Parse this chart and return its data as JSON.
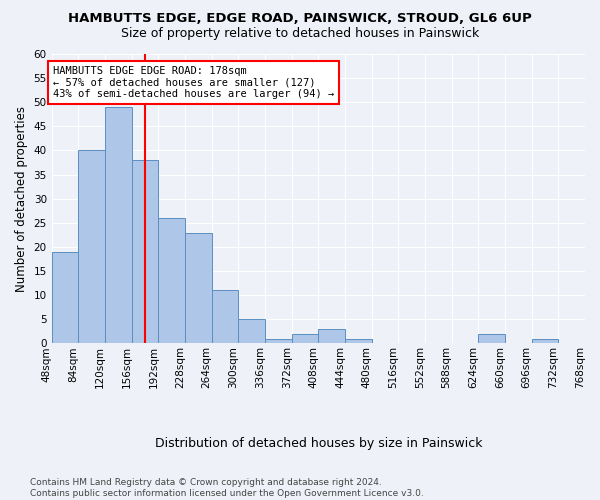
{
  "title": "HAMBUTTS EDGE, EDGE ROAD, PAINSWICK, STROUD, GL6 6UP",
  "subtitle": "Size of property relative to detached houses in Painswick",
  "xlabel": "Distribution of detached houses by size in Painswick",
  "ylabel": "Number of detached properties",
  "bar_values": [
    19,
    40,
    49,
    38,
    26,
    23,
    11,
    5,
    1,
    2,
    3,
    1,
    0,
    0,
    0,
    0,
    2,
    0,
    1,
    0
  ],
  "bin_labels": [
    "48sqm",
    "84sqm",
    "120sqm",
    "156sqm",
    "192sqm",
    "228sqm",
    "264sqm",
    "300sqm",
    "336sqm",
    "372sqm",
    "408sqm",
    "444sqm",
    "480sqm",
    "516sqm",
    "552sqm",
    "588sqm",
    "624sqm",
    "660sqm",
    "696sqm",
    "732sqm",
    "768sqm"
  ],
  "bar_color": "#aec6e8",
  "bar_edge_color": "#5a8fc2",
  "ref_line_color": "red",
  "annotation_text": "HAMBUTTS EDGE EDGE ROAD: 178sqm\n← 57% of detached houses are smaller (127)\n43% of semi-detached houses are larger (94) →",
  "annotation_box_color": "white",
  "annotation_box_edge": "red",
  "ylim": [
    0,
    60
  ],
  "yticks": [
    0,
    5,
    10,
    15,
    20,
    25,
    30,
    35,
    40,
    45,
    50,
    55,
    60
  ],
  "footer_line1": "Contains HM Land Registry data © Crown copyright and database right 2024.",
  "footer_line2": "Contains public sector information licensed under the Open Government Licence v3.0.",
  "bg_color": "#eef2f8",
  "plot_bg_color": "#eef2f8",
  "title_fontsize": 9.5,
  "subtitle_fontsize": 9,
  "xlabel_fontsize": 9,
  "ylabel_fontsize": 8.5,
  "tick_fontsize": 7.5,
  "footer_fontsize": 6.5,
  "annot_fontsize": 7.5
}
